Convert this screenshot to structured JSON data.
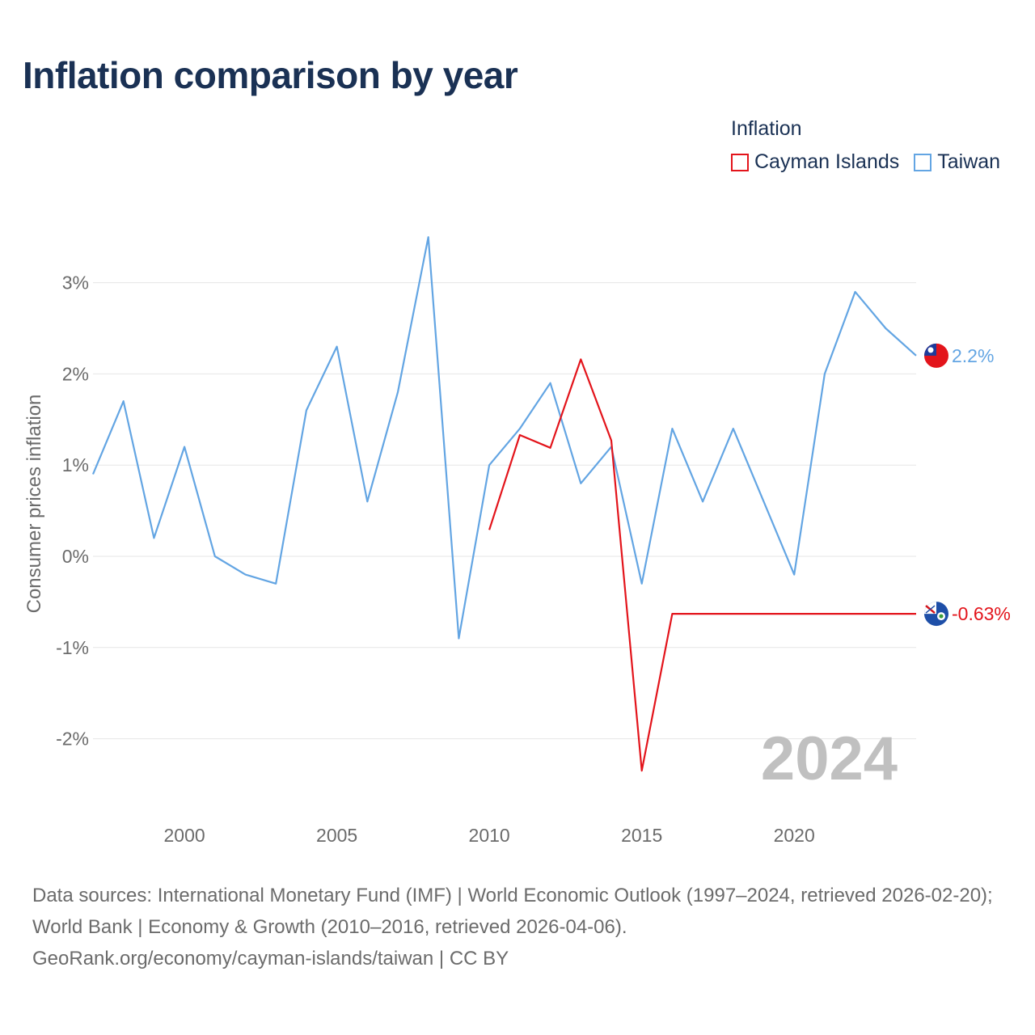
{
  "title": "Inflation comparison by year",
  "legend": {
    "title": "Inflation",
    "items": [
      {
        "label": "Cayman Islands",
        "color": "#e3141b"
      },
      {
        "label": "Taiwan",
        "color": "#63a5e3"
      }
    ]
  },
  "year_watermark": "2024",
  "footer": {
    "sources": "Data sources: International Monetary Fund (IMF) | World Economic Outlook (1997–2024, retrieved 2026-02-20); World Bank | Economy & Growth (2010–2016, retrieved 2026-04-06).",
    "link": "GeoRank.org/economy/cayman-islands/taiwan | CC BY"
  },
  "chart_data": {
    "type": "line",
    "title": "Inflation comparison by year",
    "xlabel": "",
    "ylabel": "Consumer prices inflation",
    "xlim": [
      1997,
      2024
    ],
    "ylim": [
      -2.6,
      3.5
    ],
    "x_ticks": [
      2000,
      2005,
      2010,
      2015,
      2020
    ],
    "x_tick_labels": [
      "2000",
      "2005",
      "2010",
      "2015",
      "2020"
    ],
    "y_ticks": [
      -2,
      -1,
      0,
      1,
      2,
      3
    ],
    "y_tick_labels": [
      "-2%",
      "-1%",
      "0%",
      "1%",
      "2%",
      "3%"
    ],
    "grid": true,
    "series": [
      {
        "name": "Taiwan",
        "color": "#63a5e3",
        "end_label": "2.2%",
        "end_marker": "taiwan-flag-icon",
        "x": [
          1997,
          1998,
          1999,
          2000,
          2001,
          2002,
          2003,
          2004,
          2005,
          2006,
          2007,
          2008,
          2009,
          2010,
          2011,
          2012,
          2013,
          2014,
          2015,
          2016,
          2017,
          2018,
          2019,
          2020,
          2021,
          2022,
          2023,
          2024
        ],
        "values": [
          0.9,
          1.7,
          0.2,
          1.2,
          0.0,
          -0.2,
          -0.3,
          1.6,
          2.3,
          0.6,
          1.8,
          3.5,
          -0.9,
          1.0,
          1.4,
          1.9,
          0.8,
          1.2,
          -0.3,
          1.4,
          0.6,
          1.4,
          0.6,
          -0.2,
          2.0,
          2.9,
          2.5,
          2.2
        ]
      },
      {
        "name": "Cayman Islands",
        "color": "#e3141b",
        "end_label": "-0.63%",
        "end_marker": "cayman-islands-flag-icon",
        "x": [
          2010,
          2011,
          2012,
          2013,
          2014,
          2015,
          2016,
          2017,
          2018,
          2019,
          2020,
          2021,
          2022,
          2023,
          2024
        ],
        "values": [
          0.29,
          1.33,
          1.19,
          2.16,
          1.27,
          -2.35,
          -0.63,
          -0.63,
          -0.63,
          -0.63,
          -0.63,
          -0.63,
          -0.63,
          -0.63,
          -0.63
        ]
      }
    ]
  }
}
